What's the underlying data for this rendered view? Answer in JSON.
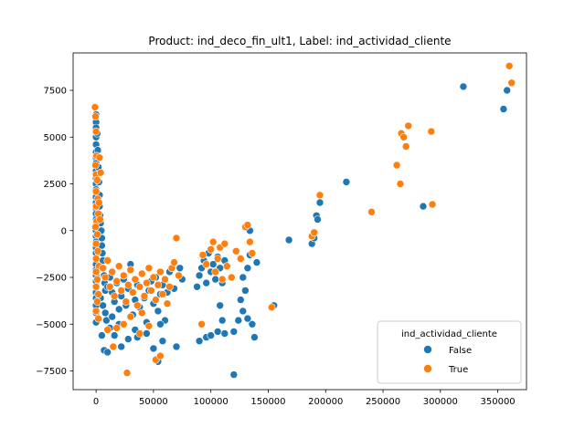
{
  "chart_data": {
    "type": "scatter",
    "title": "Product: ind_deco_fin_ult1, Label: ind_actividad_cliente",
    "xlabel": "",
    "ylabel": "",
    "xlim": [
      -20000,
      375000
    ],
    "ylim": [
      -8500,
      9500
    ],
    "x_ticks": [
      0,
      50000,
      100000,
      150000,
      200000,
      250000,
      300000,
      350000
    ],
    "x_tick_labels": [
      "0",
      "50000",
      "100000",
      "150000",
      "200000",
      "250000",
      "300000",
      "350000"
    ],
    "y_ticks": [
      -7500,
      -5000,
      -2500,
      0,
      2500,
      5000,
      7500
    ],
    "y_tick_labels": [
      "−7500",
      "−5000",
      "−2500",
      "0",
      "2500",
      "5000",
      "7500"
    ],
    "grid": false,
    "legend": {
      "title": "ind_actividad_cliente",
      "placement": "lower-right",
      "entries": [
        {
          "label": "False",
          "color": "#1f77b4"
        },
        {
          "label": "True",
          "color": "#ff7f0e"
        }
      ]
    },
    "series": [
      {
        "label_ref": "False",
        "color": "#1f77b4",
        "points": [
          [
            0,
            6200
          ],
          [
            0,
            5800
          ],
          [
            0,
            5500
          ],
          [
            0,
            5000
          ],
          [
            0,
            4600
          ],
          [
            0,
            4200
          ],
          [
            0,
            3900
          ],
          [
            0,
            3600
          ],
          [
            0,
            3200
          ],
          [
            0,
            2800
          ],
          [
            0,
            2500
          ],
          [
            0,
            2200
          ],
          [
            0,
            1800
          ],
          [
            0,
            1500
          ],
          [
            0,
            1200
          ],
          [
            0,
            900
          ],
          [
            0,
            600
          ],
          [
            0,
            300
          ],
          [
            0,
            0
          ],
          [
            0,
            -300
          ],
          [
            0,
            -600
          ],
          [
            0,
            -900
          ],
          [
            0,
            -1200
          ],
          [
            0,
            -1500
          ],
          [
            0,
            -1800
          ],
          [
            0,
            -2100
          ],
          [
            0,
            -2400
          ],
          [
            0,
            -2700
          ],
          [
            0,
            -3000
          ],
          [
            0,
            -3300
          ],
          [
            0,
            -3600
          ],
          [
            0,
            -4000
          ],
          [
            0,
            -4400
          ],
          [
            0,
            -4900
          ],
          [
            1000,
            5200
          ],
          [
            1500,
            4300
          ],
          [
            2000,
            3400
          ],
          [
            2500,
            2600
          ],
          [
            3000,
            1900
          ],
          [
            3000,
            1300
          ],
          [
            3500,
            800
          ],
          [
            4000,
            400
          ],
          [
            4500,
            0
          ],
          [
            5000,
            -400
          ],
          [
            5000,
            -800
          ],
          [
            5500,
            -1200
          ],
          [
            6000,
            -1600
          ],
          [
            6500,
            -2000
          ],
          [
            7000,
            -2400
          ],
          [
            7500,
            -2800
          ],
          [
            8000,
            -3200
          ],
          [
            4000,
            -3600
          ],
          [
            6000,
            -4000
          ],
          [
            8000,
            -4400
          ],
          [
            9000,
            -4800
          ],
          [
            5000,
            -5600
          ],
          [
            7000,
            -6400
          ],
          [
            10000,
            -6500
          ],
          [
            12000,
            -5200
          ],
          [
            14000,
            -4600
          ],
          [
            10000,
            -3000
          ],
          [
            12000,
            -2500
          ],
          [
            14000,
            -3300
          ],
          [
            16000,
            -3800
          ],
          [
            18000,
            -2800
          ],
          [
            20000,
            -4200
          ],
          [
            22000,
            -3500
          ],
          [
            24000,
            -2600
          ],
          [
            26000,
            -4000
          ],
          [
            28000,
            -3100
          ],
          [
            30000,
            -1800
          ],
          [
            32000,
            -4500
          ],
          [
            34000,
            -3700
          ],
          [
            36000,
            -2900
          ],
          [
            38000,
            -4100
          ],
          [
            40000,
            -2300
          ],
          [
            42000,
            -3600
          ],
          [
            44000,
            -4900
          ],
          [
            46000,
            -3200
          ],
          [
            48000,
            -2700
          ],
          [
            50000,
            -3900
          ],
          [
            52000,
            -2500
          ],
          [
            54000,
            -4300
          ],
          [
            56000,
            -3400
          ],
          [
            58000,
            -2900
          ],
          [
            60000,
            -4800
          ],
          [
            62000,
            -3300
          ],
          [
            64000,
            -2200
          ],
          [
            16000,
            -5600
          ],
          [
            22000,
            -6200
          ],
          [
            28000,
            -5800
          ],
          [
            36000,
            -5700
          ],
          [
            44000,
            -5500
          ],
          [
            50000,
            -6300
          ],
          [
            58000,
            -5900
          ],
          [
            54000,
            -7000
          ],
          [
            20000,
            -5000
          ],
          [
            34000,
            -5300
          ],
          [
            56000,
            -5000
          ],
          [
            70000,
            -6200
          ],
          [
            75000,
            -2600
          ],
          [
            68000,
            -3100
          ],
          [
            73000,
            -2000
          ],
          [
            88000,
            -3000
          ],
          [
            90000,
            -2400
          ],
          [
            92000,
            -2000
          ],
          [
            94000,
            -1600
          ],
          [
            96000,
            -2800
          ],
          [
            98000,
            -1200
          ],
          [
            100000,
            -2200
          ],
          [
            102000,
            -1800
          ],
          [
            104000,
            -2600
          ],
          [
            106000,
            -1400
          ],
          [
            108000,
            -2000
          ],
          [
            110000,
            -2800
          ],
          [
            112000,
            -1600
          ],
          [
            90000,
            -5900
          ],
          [
            96000,
            -5700
          ],
          [
            100000,
            -5600
          ],
          [
            106000,
            -5400
          ],
          [
            108000,
            -4000
          ],
          [
            110000,
            -4800
          ],
          [
            112000,
            -5500
          ],
          [
            120000,
            -5400
          ],
          [
            124000,
            -4800
          ],
          [
            126000,
            -3700
          ],
          [
            128000,
            -4300
          ],
          [
            130000,
            -3200
          ],
          [
            128000,
            -2500
          ],
          [
            132000,
            -2000
          ],
          [
            134000,
            -1300
          ],
          [
            134000,
            0
          ],
          [
            136000,
            -5000
          ],
          [
            138000,
            -5700
          ],
          [
            140000,
            -1700
          ],
          [
            132000,
            -4700
          ],
          [
            120000,
            -7700
          ],
          [
            155000,
            -4000
          ],
          [
            168000,
            -500
          ],
          [
            188000,
            -700
          ],
          [
            190000,
            -400
          ],
          [
            192000,
            800
          ],
          [
            193000,
            600
          ],
          [
            195000,
            1500
          ],
          [
            218000,
            2600
          ],
          [
            285000,
            1300
          ],
          [
            320000,
            7700
          ],
          [
            355000,
            6500
          ],
          [
            358000,
            7500
          ]
        ]
      },
      {
        "label_ref": "True",
        "color": "#ff7f0e",
        "points": [
          [
            -1000,
            6600
          ],
          [
            -500,
            6100
          ],
          [
            0,
            5300
          ],
          [
            500,
            4000
          ],
          [
            -500,
            3500
          ],
          [
            0,
            3000
          ],
          [
            1000,
            2700
          ],
          [
            0,
            2100
          ],
          [
            1500,
            1700
          ],
          [
            0,
            1300
          ],
          [
            2000,
            900
          ],
          [
            500,
            500
          ],
          [
            -500,
            200
          ],
          [
            1000,
            -200
          ],
          [
            0,
            -700
          ],
          [
            1500,
            -1100
          ],
          [
            0,
            -1500
          ],
          [
            2500,
            -1900
          ],
          [
            0,
            -2200
          ],
          [
            1000,
            -2600
          ],
          [
            0,
            -3000
          ],
          [
            2000,
            -3400
          ],
          [
            1000,
            -3800
          ],
          [
            0,
            -4300
          ],
          [
            2000,
            -4700
          ],
          [
            3000,
            3900
          ],
          [
            4000,
            3100
          ],
          [
            2500,
            1500
          ],
          [
            3500,
            600
          ],
          [
            6000,
            -2000
          ],
          [
            8000,
            -2500
          ],
          [
            10000,
            -1600
          ],
          [
            12000,
            -3000
          ],
          [
            14000,
            -2200
          ],
          [
            16000,
            -3500
          ],
          [
            18000,
            -2700
          ],
          [
            20000,
            -1900
          ],
          [
            22000,
            -3200
          ],
          [
            24000,
            -2400
          ],
          [
            26000,
            -3800
          ],
          [
            28000,
            -2900
          ],
          [
            30000,
            -2100
          ],
          [
            32000,
            -3300
          ],
          [
            34000,
            -2600
          ],
          [
            36000,
            -4000
          ],
          [
            38000,
            -3000
          ],
          [
            40000,
            -2300
          ],
          [
            42000,
            -3500
          ],
          [
            44000,
            -2800
          ],
          [
            46000,
            -2000
          ],
          [
            48000,
            -3200
          ],
          [
            50000,
            -2500
          ],
          [
            52000,
            -3700
          ],
          [
            54000,
            -2900
          ],
          [
            56000,
            -2200
          ],
          [
            58000,
            -3400
          ],
          [
            60000,
            -2600
          ],
          [
            62000,
            -3900
          ],
          [
            64000,
            -3000
          ],
          [
            66000,
            -2000
          ],
          [
            68000,
            -1700
          ],
          [
            70000,
            -400
          ],
          [
            72000,
            -2400
          ],
          [
            18000,
            -5200
          ],
          [
            24000,
            -5000
          ],
          [
            30000,
            -4600
          ],
          [
            38000,
            -5500
          ],
          [
            46000,
            -5100
          ],
          [
            52000,
            -6900
          ],
          [
            56000,
            -6700
          ],
          [
            15000,
            -6200
          ],
          [
            27000,
            -7600
          ],
          [
            10000,
            -5300
          ],
          [
            40000,
            -4400
          ],
          [
            92000,
            -5000
          ],
          [
            93000,
            -1300
          ],
          [
            96000,
            -1800
          ],
          [
            100000,
            -1000
          ],
          [
            102000,
            -600
          ],
          [
            104000,
            -2200
          ],
          [
            106000,
            -1500
          ],
          [
            108000,
            -900
          ],
          [
            110000,
            -2600
          ],
          [
            112000,
            -700
          ],
          [
            114000,
            -1900
          ],
          [
            118000,
            -2500
          ],
          [
            122000,
            -1100
          ],
          [
            126000,
            -1500
          ],
          [
            130000,
            200
          ],
          [
            132000,
            300
          ],
          [
            134000,
            -600
          ],
          [
            136000,
            -1200
          ],
          [
            153000,
            -4100
          ],
          [
            188000,
            -300
          ],
          [
            190000,
            -100
          ],
          [
            195000,
            1900
          ],
          [
            240000,
            1000
          ],
          [
            262000,
            3500
          ],
          [
            265000,
            2500
          ],
          [
            266000,
            5200
          ],
          [
            268000,
            5000
          ],
          [
            270000,
            4500
          ],
          [
            272000,
            5600
          ],
          [
            292000,
            5300
          ],
          [
            293000,
            1400
          ],
          [
            360000,
            8800
          ],
          [
            362000,
            7900
          ]
        ]
      }
    ]
  }
}
